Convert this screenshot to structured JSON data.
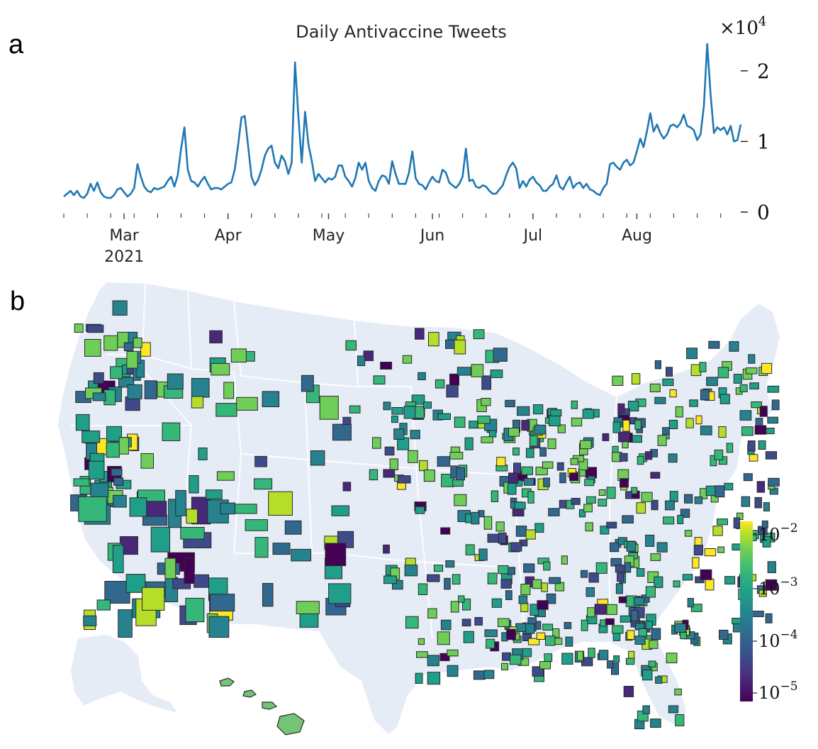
{
  "panels": {
    "a": "a",
    "b": "b"
  },
  "chart_data": [
    {
      "type": "line",
      "title": "Daily Antivaccine Tweets",
      "ylabel_multiplier": "×10",
      "ylabel_multiplier_exp": "4",
      "ylim": [
        0,
        2.4
      ],
      "yticks": [
        {
          "value": 0,
          "label": "0"
        },
        {
          "value": 1,
          "label": "1"
        },
        {
          "value": 2,
          "label": "2"
        }
      ],
      "xticks": [
        {
          "day": 18,
          "label": "Mar",
          "sublabel": "2021"
        },
        {
          "day": 49,
          "label": "Apr",
          "sublabel": ""
        },
        {
          "day": 79,
          "label": "May",
          "sublabel": ""
        },
        {
          "day": 110,
          "label": "Jun",
          "sublabel": ""
        },
        {
          "day": 140,
          "label": "Jul",
          "sublabel": ""
        },
        {
          "day": 171,
          "label": "Aug",
          "sublabel": ""
        }
      ],
      "x_start_day": 0,
      "x_end_day": 178,
      "series_color": "#1f77b4",
      "series": [
        {
          "name": "Daily Antivaccine Tweets (×10^4)",
          "values": [
            0.22,
            0.26,
            0.3,
            0.24,
            0.3,
            0.22,
            0.2,
            0.26,
            0.4,
            0.3,
            0.42,
            0.28,
            0.22,
            0.2,
            0.2,
            0.24,
            0.32,
            0.34,
            0.28,
            0.22,
            0.26,
            0.34,
            0.68,
            0.5,
            0.36,
            0.3,
            0.28,
            0.34,
            0.32,
            0.34,
            0.36,
            0.44,
            0.5,
            0.36,
            0.52,
            0.9,
            1.2,
            0.6,
            0.44,
            0.42,
            0.36,
            0.44,
            0.5,
            0.4,
            0.32,
            0.34,
            0.34,
            0.32,
            0.36,
            0.4,
            0.42,
            0.6,
            0.94,
            1.34,
            1.36,
            0.94,
            0.5,
            0.38,
            0.46,
            0.6,
            0.8,
            0.9,
            0.94,
            0.7,
            0.62,
            0.8,
            0.72,
            0.54,
            0.7,
            2.12,
            1.36,
            0.7,
            1.42,
            0.96,
            0.72,
            0.44,
            0.54,
            0.48,
            0.42,
            0.48,
            0.46,
            0.5,
            0.66,
            0.66,
            0.5,
            0.44,
            0.36,
            0.48,
            0.7,
            0.6,
            0.7,
            0.44,
            0.34,
            0.3,
            0.44,
            0.52,
            0.5,
            0.4,
            0.72,
            0.54,
            0.4,
            0.4,
            0.4,
            0.56,
            0.86,
            0.48,
            0.4,
            0.38,
            0.32,
            0.42,
            0.5,
            0.44,
            0.42,
            0.6,
            0.56,
            0.42,
            0.38,
            0.34,
            0.4,
            0.5,
            0.9,
            0.44,
            0.46,
            0.36,
            0.34,
            0.38,
            0.36,
            0.3,
            0.26,
            0.26,
            0.32,
            0.38,
            0.52,
            0.64,
            0.7,
            0.62,
            0.34,
            0.44,
            0.36,
            0.46,
            0.5,
            0.42,
            0.38,
            0.3,
            0.3,
            0.36,
            0.4,
            0.52,
            0.36,
            0.32,
            0.42,
            0.5,
            0.34,
            0.4,
            0.42,
            0.34,
            0.4,
            0.32,
            0.3,
            0.26,
            0.24,
            0.34,
            0.4,
            0.68,
            0.7,
            0.64,
            0.6,
            0.7,
            0.74,
            0.66,
            0.7,
            0.86,
            1.04,
            0.92,
            1.14,
            1.4,
            1.14,
            1.24,
            1.12,
            1.04,
            1.1,
            1.22,
            1.24,
            1.2,
            1.26,
            1.38,
            1.22,
            1.2,
            1.16,
            1.02,
            1.1,
            1.5,
            2.38,
            1.66,
            1.12,
            1.2,
            1.16,
            1.2,
            1.1,
            1.22,
            1.0,
            1.02,
            1.24
          ]
        }
      ]
    },
    {
      "type": "heatmap",
      "subtype": "choropleth",
      "description_key": "US county map",
      "colorbar": {
        "scale": "log",
        "colors": [
          "#440154",
          "#482878",
          "#3e4a89",
          "#31688e",
          "#26828e",
          "#1f9e89",
          "#35b779",
          "#6ece58",
          "#b5de2b",
          "#fde725"
        ],
        "ticks": [
          {
            "base": "10",
            "exp": "−2"
          },
          {
            "base": "10",
            "exp": "−3"
          },
          {
            "base": "10",
            "exp": "−4"
          },
          {
            "base": "10",
            "exp": "−5"
          }
        ],
        "range": [
          1e-05,
          0.02
        ]
      },
      "land_color": "#e5ecf6",
      "border_color": "#ffffff",
      "county_edge_color": "#2a2a2a"
    }
  ]
}
